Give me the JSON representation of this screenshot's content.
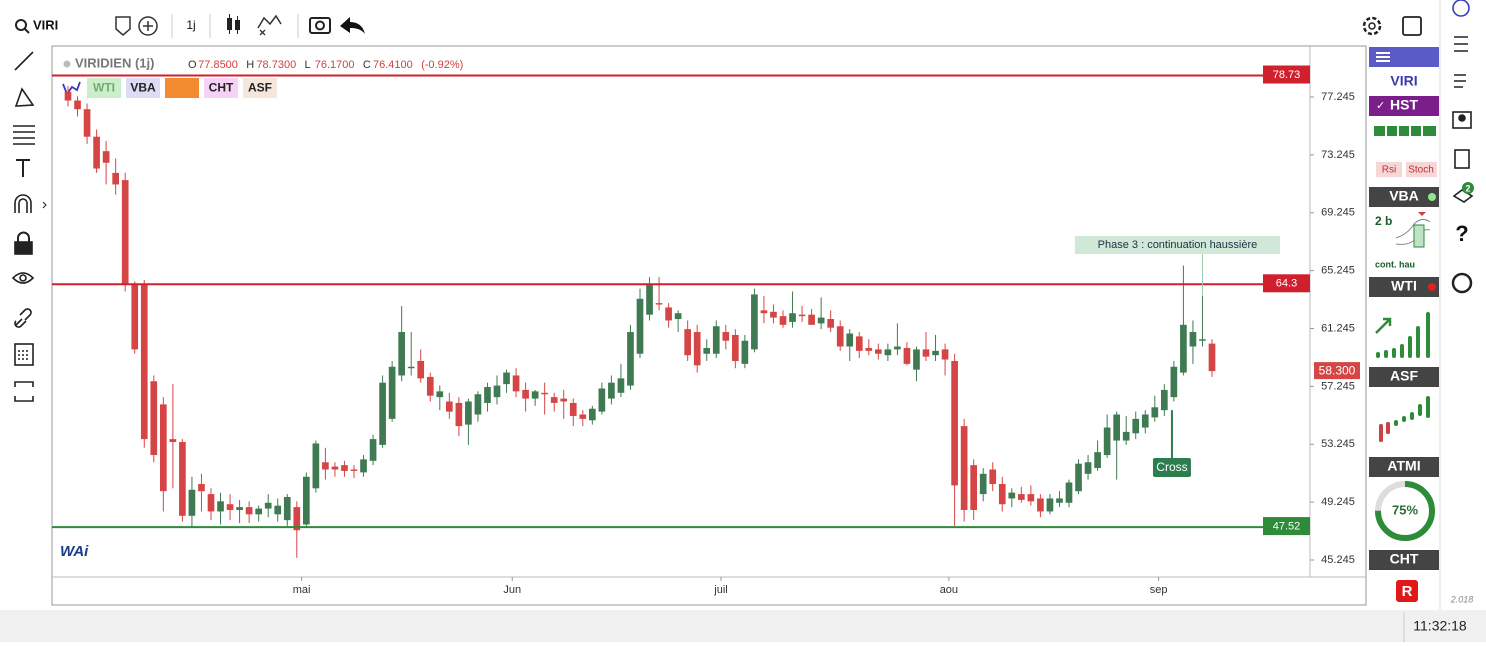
{
  "toolbar": {
    "search": "VIRI",
    "interval": "1j"
  },
  "header": {
    "name": "VIRIDIEN (1j)",
    "letters": [
      "O",
      "H",
      "L",
      "C"
    ],
    "values": [
      "77.8500",
      "78.7300",
      "76.1700",
      "76.4100"
    ],
    "change": "(-0.92%)"
  },
  "chips": [
    "WTI",
    "VBA",
    "CHT",
    "ASF"
  ],
  "chart_data": {
    "type": "candlestick",
    "ohlc": [
      [
        77.6,
        78.0,
        76.6,
        77.0
      ],
      [
        77.0,
        77.3,
        75.9,
        76.4
      ],
      [
        76.4,
        76.8,
        74.0,
        74.5
      ],
      [
        74.5,
        75.0,
        72.0,
        72.3
      ],
      [
        73.5,
        74.2,
        71.2,
        72.7
      ],
      [
        72.0,
        73.0,
        70.5,
        71.2
      ],
      [
        71.5,
        72.0,
        63.8,
        64.3
      ],
      [
        64.3,
        64.5,
        59.5,
        59.8
      ],
      [
        64.3,
        64.6,
        53.0,
        53.6
      ],
      [
        57.6,
        58.0,
        52.0,
        52.5
      ],
      [
        56.0,
        56.5,
        48.6,
        50.0
      ],
      [
        53.6,
        57.4,
        50.2,
        53.4
      ],
      [
        53.4,
        53.6,
        47.9,
        48.3
      ],
      [
        48.3,
        51.0,
        47.5,
        50.1
      ],
      [
        50.5,
        51.2,
        48.6,
        50.0
      ],
      [
        49.8,
        50.2,
        48.0,
        48.6
      ],
      [
        48.6,
        49.9,
        47.7,
        49.3
      ],
      [
        49.1,
        49.8,
        48.0,
        48.7
      ],
      [
        48.7,
        49.4,
        47.8,
        48.9
      ],
      [
        48.9,
        49.3,
        47.8,
        48.4
      ],
      [
        48.4,
        49.0,
        47.9,
        48.8
      ],
      [
        48.8,
        49.8,
        48.2,
        49.2
      ],
      [
        48.4,
        49.5,
        47.9,
        49.0
      ],
      [
        48.0,
        49.8,
        47.6,
        49.6
      ],
      [
        48.9,
        49.3,
        45.4,
        47.3
      ],
      [
        47.7,
        51.3,
        47.5,
        51.0
      ],
      [
        50.2,
        53.5,
        49.9,
        53.3
      ],
      [
        52.0,
        53.0,
        50.8,
        51.5
      ],
      [
        51.7,
        52.0,
        51.0,
        51.5
      ],
      [
        51.8,
        52.1,
        51.0,
        51.4
      ],
      [
        51.5,
        51.8,
        50.9,
        51.4
      ],
      [
        51.3,
        52.5,
        51.0,
        52.2
      ],
      [
        52.1,
        53.9,
        51.8,
        53.6
      ],
      [
        53.2,
        58.0,
        53.0,
        57.5
      ],
      [
        55.0,
        59.0,
        54.8,
        58.6
      ],
      [
        58.0,
        62.8,
        57.6,
        61.0
      ],
      [
        58.5,
        61.0,
        58.0,
        58.6
      ],
      [
        59.0,
        59.8,
        57.5,
        57.8
      ],
      [
        57.9,
        58.2,
        56.2,
        56.6
      ],
      [
        56.5,
        57.3,
        55.6,
        56.9
      ],
      [
        56.2,
        56.8,
        55.0,
        55.5
      ],
      [
        56.1,
        56.5,
        53.8,
        54.5
      ],
      [
        54.6,
        56.4,
        53.2,
        56.2
      ],
      [
        55.3,
        56.9,
        54.8,
        56.7
      ],
      [
        56.1,
        57.5,
        55.5,
        57.2
      ],
      [
        56.5,
        58.0,
        56.0,
        57.3
      ],
      [
        57.4,
        58.4,
        56.8,
        58.2
      ],
      [
        58.0,
        58.5,
        56.5,
        56.9
      ],
      [
        57.0,
        57.5,
        55.5,
        56.4
      ],
      [
        56.4,
        57.0,
        55.9,
        56.9
      ],
      [
        56.8,
        57.5,
        55.3,
        56.7
      ],
      [
        56.5,
        56.8,
        55.5,
        56.1
      ],
      [
        56.4,
        57.0,
        55.0,
        56.2
      ],
      [
        56.1,
        56.4,
        54.5,
        55.2
      ],
      [
        55.3,
        55.6,
        54.5,
        55.0
      ],
      [
        54.9,
        55.9,
        54.6,
        55.7
      ],
      [
        55.5,
        57.5,
        55.3,
        57.1
      ],
      [
        56.4,
        58.0,
        56.0,
        57.5
      ],
      [
        56.8,
        58.8,
        56.5,
        57.8
      ],
      [
        57.3,
        61.5,
        57.0,
        61.0
      ],
      [
        59.5,
        64.0,
        59.2,
        63.3
      ],
      [
        62.2,
        64.8,
        61.8,
        64.3
      ],
      [
        63.0,
        64.8,
        62.5,
        62.9
      ],
      [
        62.7,
        63.0,
        61.3,
        61.8
      ],
      [
        61.9,
        62.5,
        61.0,
        62.3
      ],
      [
        61.2,
        61.8,
        59.0,
        59.4
      ],
      [
        61.0,
        61.5,
        58.2,
        58.7
      ],
      [
        59.5,
        60.5,
        59.0,
        59.9
      ],
      [
        59.5,
        61.8,
        59.2,
        61.4
      ],
      [
        61.0,
        61.5,
        59.8,
        60.4
      ],
      [
        60.8,
        61.2,
        58.5,
        59.0
      ],
      [
        58.8,
        60.8,
        58.5,
        60.4
      ],
      [
        59.8,
        64.0,
        59.6,
        63.6
      ],
      [
        62.5,
        63.5,
        61.6,
        62.3
      ],
      [
        62.4,
        62.9,
        61.6,
        62.0
      ],
      [
        62.1,
        62.5,
        61.3,
        61.5
      ],
      [
        61.7,
        63.8,
        61.3,
        62.3
      ],
      [
        62.2,
        62.8,
        61.7,
        62.1
      ],
      [
        62.2,
        62.6,
        61.5,
        61.5
      ],
      [
        61.6,
        63.4,
        61.2,
        62.0
      ],
      [
        61.9,
        62.5,
        61.0,
        61.3
      ],
      [
        61.4,
        61.8,
        59.7,
        60.0
      ],
      [
        60.0,
        61.2,
        59.0,
        60.9
      ],
      [
        60.7,
        61.0,
        59.2,
        59.7
      ],
      [
        59.9,
        60.5,
        59.4,
        59.7
      ],
      [
        59.8,
        60.2,
        59.1,
        59.5
      ],
      [
        59.4,
        60.2,
        59.0,
        59.8
      ],
      [
        59.8,
        61.6,
        59.4,
        60.0
      ],
      [
        59.9,
        60.3,
        58.7,
        58.8
      ],
      [
        58.4,
        60.0,
        57.6,
        59.8
      ],
      [
        59.8,
        61.0,
        59.0,
        59.3
      ],
      [
        59.4,
        60.8,
        59.0,
        59.7
      ],
      [
        59.8,
        60.2,
        58.0,
        59.1
      ],
      [
        59.0,
        59.5,
        47.6,
        50.4
      ],
      [
        54.5,
        55.0,
        47.9,
        48.7
      ],
      [
        51.8,
        52.2,
        48.0,
        48.7
      ],
      [
        49.8,
        51.6,
        49.3,
        51.2
      ],
      [
        51.5,
        52.0,
        50.0,
        50.5
      ],
      [
        50.5,
        51.0,
        48.6,
        49.1
      ],
      [
        49.5,
        50.2,
        48.9,
        49.9
      ],
      [
        49.8,
        50.3,
        49.2,
        49.4
      ],
      [
        49.8,
        50.4,
        49.0,
        49.3
      ],
      [
        49.5,
        49.8,
        48.2,
        48.6
      ],
      [
        48.6,
        49.8,
        48.4,
        49.5
      ],
      [
        49.2,
        50.0,
        48.9,
        49.5
      ],
      [
        49.2,
        50.8,
        48.9,
        50.6
      ],
      [
        50.0,
        52.2,
        49.8,
        51.9
      ],
      [
        51.2,
        52.5,
        50.8,
        52.0
      ],
      [
        51.6,
        53.5,
        51.4,
        52.7
      ],
      [
        52.5,
        55.3,
        52.3,
        54.4
      ],
      [
        53.5,
        55.5,
        50.8,
        55.3
      ],
      [
        53.5,
        55.2,
        53.2,
        54.1
      ],
      [
        54.0,
        55.5,
        53.6,
        55.0
      ],
      [
        54.4,
        55.6,
        54.0,
        55.3
      ],
      [
        55.1,
        56.6,
        54.8,
        55.8
      ],
      [
        55.6,
        57.4,
        55.2,
        57.0
      ],
      [
        56.5,
        59.0,
        56.2,
        58.6
      ],
      [
        58.2,
        65.6,
        58.0,
        61.5
      ],
      [
        60.0,
        61.8,
        58.8,
        61.0
      ],
      [
        60.4,
        63.5,
        60.0,
        60.5
      ],
      [
        60.2,
        60.5,
        57.9,
        58.3
      ]
    ],
    "up_color": "#3f7a52",
    "down_color": "#d64545",
    "ylim": [
      44.07,
      80.7
    ],
    "yticks": [
      45.245,
      49.245,
      53.245,
      57.245,
      61.245,
      65.245,
      69.245,
      73.245,
      77.245
    ],
    "xlim": [
      0,
      120
    ],
    "xticks": [
      {
        "value": 24.5,
        "label": "mai"
      },
      {
        "value": 46.6,
        "label": "Jun"
      },
      {
        "value": 68.5,
        "label": "juil"
      },
      {
        "value": 92.4,
        "label": "aou"
      },
      {
        "value": 114.4,
        "label": "sep"
      }
    ],
    "levels": [
      {
        "value": 78.73,
        "color": "#d0202e"
      },
      {
        "value": 64.3,
        "color": "#d0202e"
      },
      {
        "value": 47.52,
        "color": "#2e8b3a"
      }
    ],
    "last_price": {
      "value": 58.3,
      "label": "58.300"
    },
    "annotations": [
      {
        "text": "Phase 3 : continuation haussière",
        "x": 119,
        "y": 63.5
      },
      {
        "text": "Cross",
        "x": 115.8,
        "y": 55.6
      }
    ]
  },
  "panel": {
    "symbol": "VIRI",
    "hst": "HST",
    "rsi": "Rsi",
    "stoch": "Stoch",
    "vba": "VBA",
    "vba_signal": "2 b",
    "vba_text": "cont. hau",
    "wti": "WTI",
    "asf": "ASF",
    "atmi": "ATMI",
    "atmi_value": 75,
    "atmi_label": "75%",
    "cht": "CHT",
    "cht_badge": "R"
  },
  "side": {
    "badge": "2",
    "year": "2.018"
  },
  "status": {
    "time": "11:32:18"
  }
}
